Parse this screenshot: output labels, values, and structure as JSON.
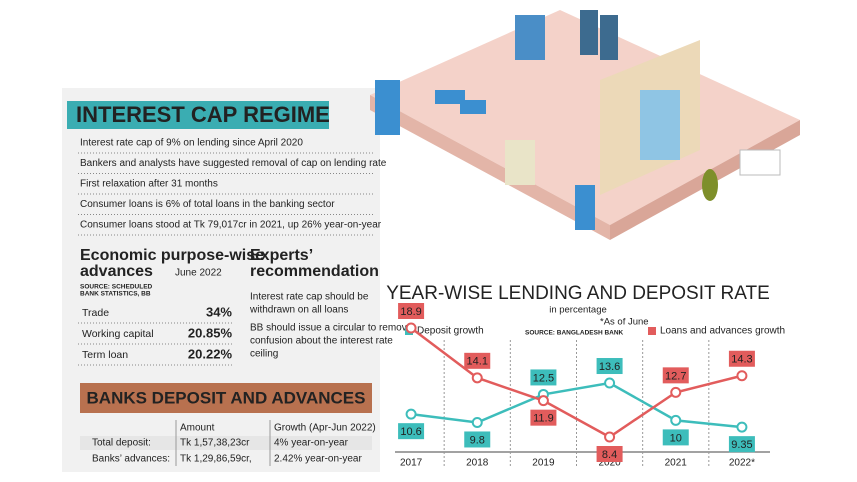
{
  "header": {
    "title": "INTEREST CAP REGIME"
  },
  "facts": [
    "Interest rate cap of 9% on lending since April 2020",
    "Bankers and analysts have suggested removal of cap on lending rate",
    "First relaxation after 31 months",
    "Consumer loans is 6% of total loans in the banking sector",
    "Consumer loans stood at Tk 79,017cr in 2021, up 26% year-on-year"
  ],
  "economic": {
    "title": [
      "Economic purpose-wise",
      "advances"
    ],
    "date": "June 2022",
    "source": [
      "SOURCE: SCHEDULED",
      "BANK STATISTICS, BB"
    ],
    "rows": [
      [
        "Trade",
        "34%"
      ],
      [
        "Working capital",
        "20.85%"
      ],
      [
        "Term loan",
        "20.22%"
      ]
    ]
  },
  "experts": {
    "title": [
      "Experts’",
      "recommendation"
    ],
    "items": [
      [
        "Interest rate cap should be",
        "withdrawn on all loans"
      ],
      [
        "BB should issue a circular to remove",
        "confusion about the interest rate",
        "ceiling"
      ]
    ]
  },
  "deposits": {
    "title": "BANKS DEPOSIT AND ADVANCES",
    "columns": [
      "Amount",
      "Growth (Apr-Jun 2022)"
    ],
    "rows": [
      [
        "Total deposit:",
        "Tk 1,57,38,23cr",
        "4% year-on-year"
      ],
      [
        "Banks’ advances:",
        "Tk 1,29,86,59cr,",
        "2.42% year-on-year"
      ]
    ]
  },
  "chart_data": {
    "type": "line",
    "title": "YEAR-WISE LENDING AND DEPOSIT RATE",
    "subtitle": "in percentage",
    "note": "*As of June",
    "source": "SOURCE: BANGLADESH BANK",
    "categories": [
      "2017",
      "2018",
      "2019",
      "2020",
      "2021",
      "2022*"
    ],
    "series": [
      {
        "name": "Deposit growth",
        "color": "#3dbdbb",
        "values": [
          10.6,
          9.8,
          12.5,
          13.6,
          10,
          9.35
        ]
      },
      {
        "name": "Loans and advances growth",
        "color": "#e25c5c",
        "values": [
          18.9,
          14.1,
          11.9,
          8.4,
          12.7,
          14.3
        ]
      }
    ]
  }
}
